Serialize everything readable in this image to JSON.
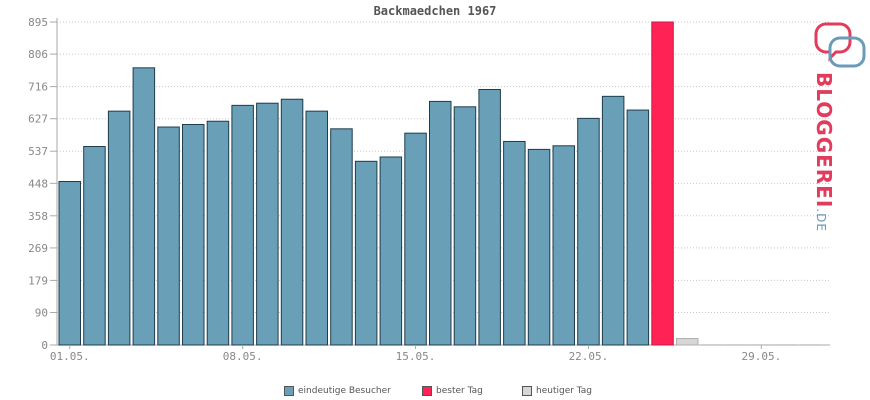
{
  "title": "Backmaedchen 1967",
  "logo": {
    "text": "BLOGGEREI",
    "suffix": ".DE"
  },
  "legend": [
    {
      "label": "eindeutige Besucher",
      "color": "#6a9fb8"
    },
    {
      "label": "bester Tag",
      "color": "#ff2255"
    },
    {
      "label": "heutiger Tag",
      "color": "#d6d6d6"
    }
  ],
  "chart_data": {
    "type": "bar",
    "ylim": [
      0,
      895
    ],
    "yticks": [
      0,
      90,
      179,
      269,
      358,
      448,
      537,
      627,
      716,
      806,
      895
    ],
    "xtick_labels": [
      {
        "day": 1,
        "label": "01.05."
      },
      {
        "day": 8,
        "label": "08.05."
      },
      {
        "day": 15,
        "label": "15.05."
      },
      {
        "day": 22,
        "label": "22.05."
      },
      {
        "day": 29,
        "label": "29.05."
      }
    ],
    "days": [
      1,
      2,
      3,
      4,
      5,
      6,
      7,
      8,
      9,
      10,
      11,
      12,
      13,
      14,
      15,
      16,
      17,
      18,
      19,
      20,
      21,
      22,
      23,
      24,
      25,
      26,
      27,
      28,
      29,
      30,
      31
    ],
    "series": [
      {
        "name": "eindeutige Besucher",
        "values": [
          453,
          550,
          648,
          768,
          604,
          611,
          620,
          664,
          670,
          681,
          648,
          599,
          509,
          521,
          587,
          675,
          660,
          708,
          564,
          542,
          552,
          628,
          689,
          651,
          null,
          null,
          null,
          null,
          null,
          null,
          null
        ]
      },
      {
        "name": "bester Tag",
        "values": [
          null,
          null,
          null,
          null,
          null,
          null,
          null,
          null,
          null,
          null,
          null,
          null,
          null,
          null,
          null,
          null,
          null,
          null,
          null,
          null,
          null,
          null,
          null,
          null,
          895,
          null,
          null,
          null,
          null,
          null,
          null
        ]
      },
      {
        "name": "heutiger Tag",
        "values": [
          null,
          null,
          null,
          null,
          null,
          null,
          null,
          null,
          null,
          null,
          null,
          null,
          null,
          null,
          null,
          null,
          null,
          null,
          null,
          null,
          null,
          null,
          null,
          null,
          null,
          18,
          0,
          0,
          0,
          0,
          0
        ]
      }
    ],
    "grid": true
  }
}
